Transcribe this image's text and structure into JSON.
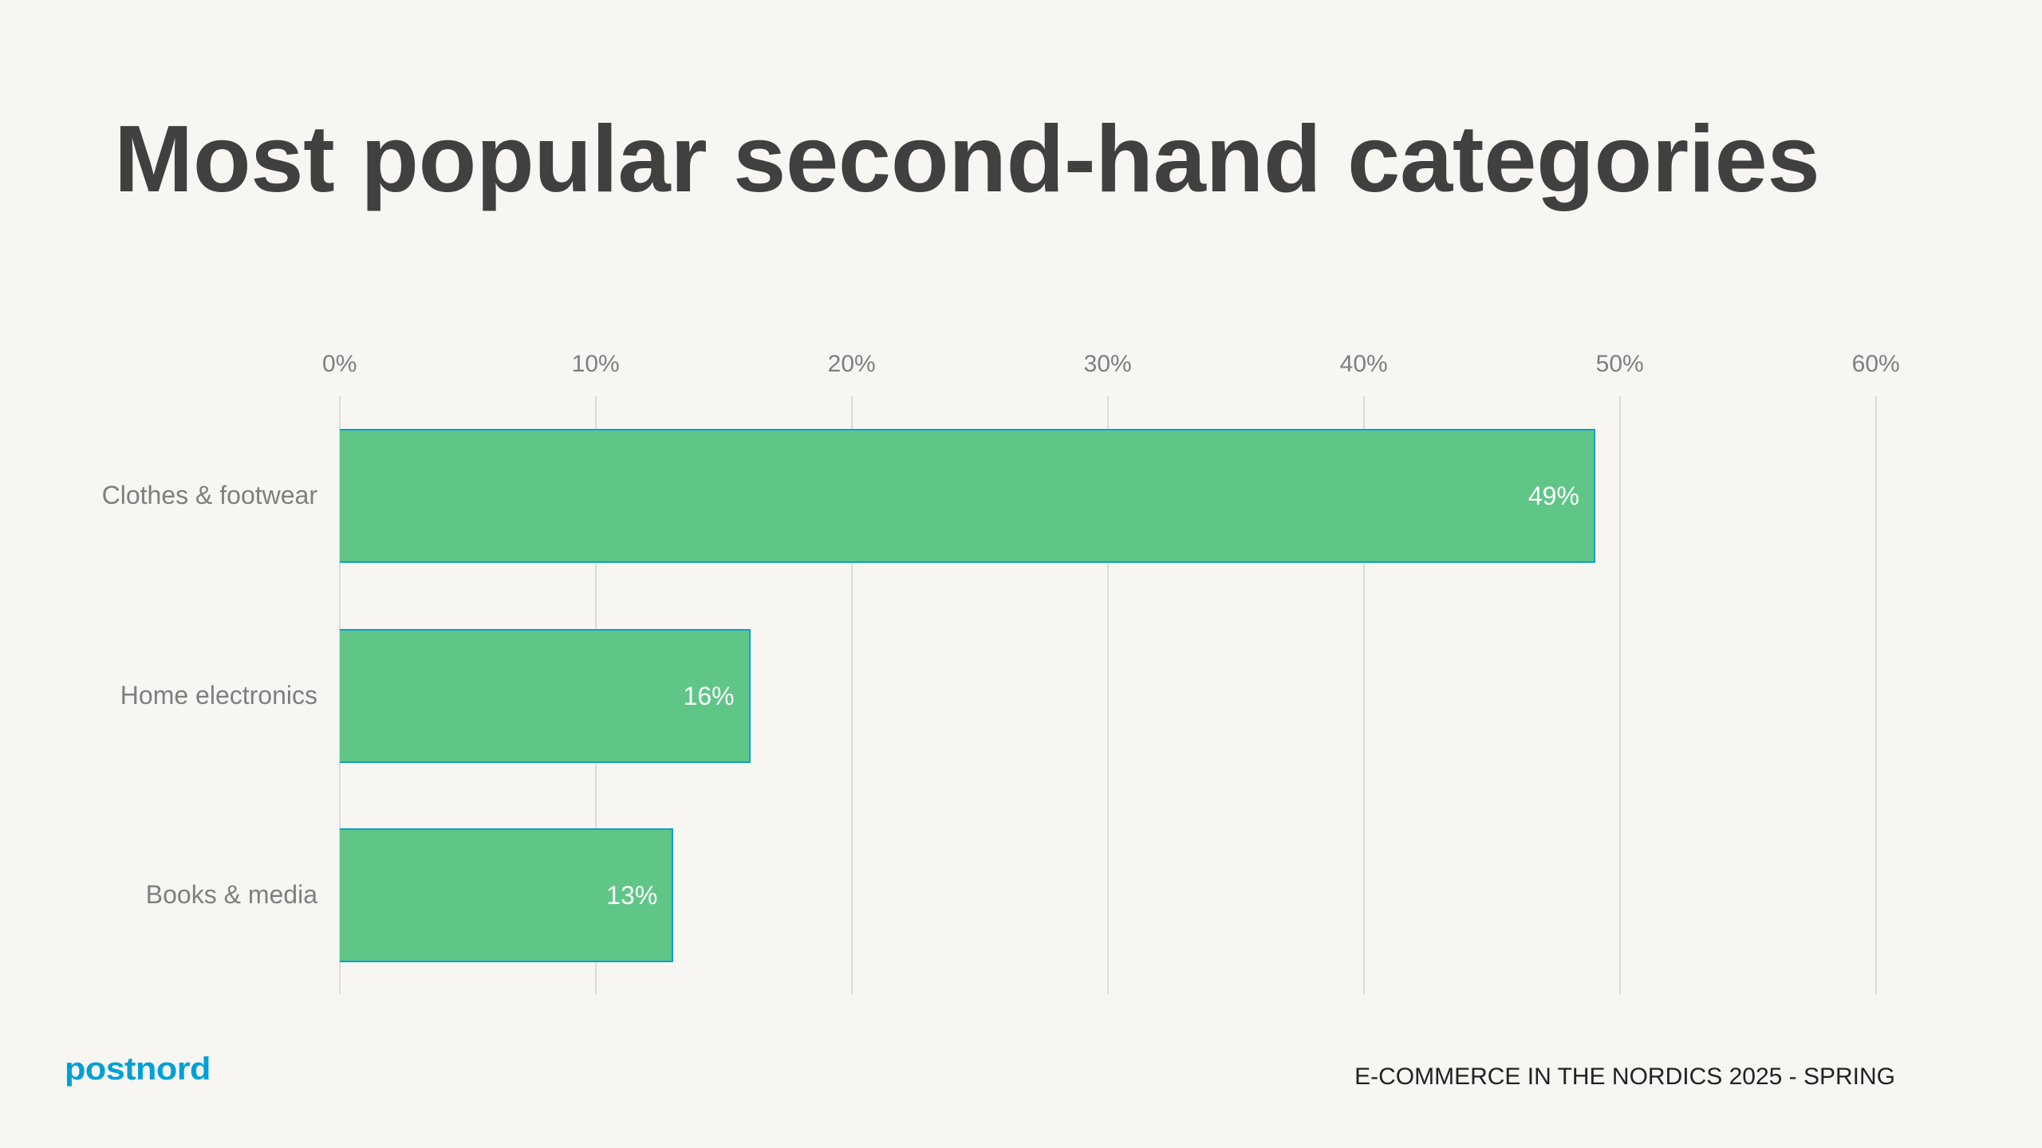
{
  "title": "Most popular second-hand categories",
  "footer": {
    "logo_text": "postnord",
    "report_title": "E-COMMERCE IN THE NORDICS 2025 - SPRING"
  },
  "colors": {
    "background": "#f7f6f3",
    "bar_fill": "#60c687",
    "bar_border": "#0aa0d2",
    "title": "#404040",
    "axis_text": "#7f7f7f",
    "gridline": "#dcdcdc",
    "logo": "#00a0d6"
  },
  "axis": {
    "ticks": [
      "0%",
      "10%",
      "20%",
      "30%",
      "40%",
      "50%",
      "60%"
    ]
  },
  "bars": [
    {
      "label": "Clothes & footwear",
      "value": 49,
      "value_label": "49%"
    },
    {
      "label": "Home electronics",
      "value": 16,
      "value_label": "16%"
    },
    {
      "label": "Books & media",
      "value": 13,
      "value_label": "13%"
    }
  ],
  "chart_data": {
    "type": "bar",
    "orientation": "horizontal",
    "title": "Most popular second-hand categories",
    "categories": [
      "Clothes & footwear",
      "Home electronics",
      "Books & media"
    ],
    "values": [
      49,
      16,
      13
    ],
    "value_labels": [
      "49%",
      "16%",
      "13%"
    ],
    "xlabel": "",
    "ylabel": "",
    "xlim": [
      0,
      60
    ],
    "x_ticks": [
      "0%",
      "10%",
      "20%",
      "30%",
      "40%",
      "50%",
      "60%"
    ],
    "x_axis_position": "top",
    "grid": true,
    "legend": null,
    "data_labels": "inside-end",
    "unit": "%"
  }
}
